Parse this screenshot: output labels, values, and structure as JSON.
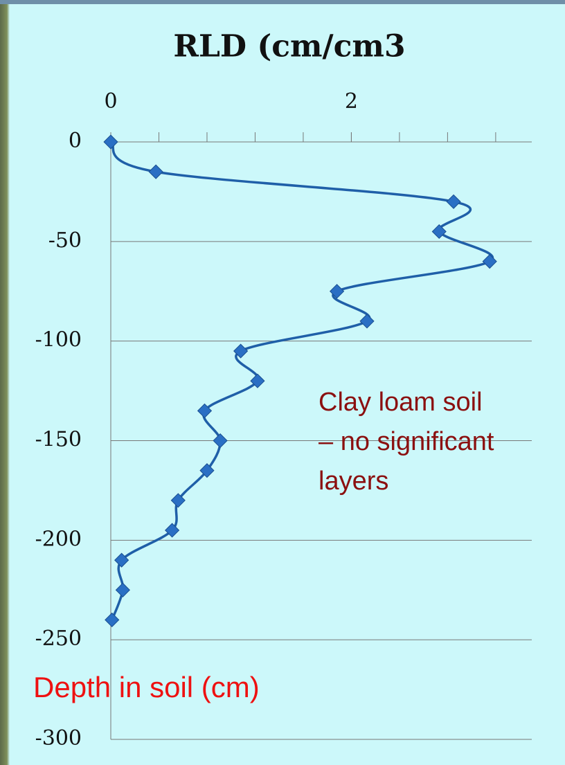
{
  "chart_data": {
    "type": "line",
    "title": "RLD (cm/cm3",
    "x": [
      0,
      0.375,
      2.85,
      2.73,
      3.15,
      1.88,
      2.13,
      1.08,
      1.22,
      0.78,
      0.91,
      0.8,
      0.56,
      0.51,
      0.09,
      0.1,
      0.01
    ],
    "series": [
      {
        "color": "#1f5fa8",
        "values": [
          0,
          -15,
          -30,
          -45,
          -60,
          -75,
          -90,
          -105,
          -120,
          -135,
          -150,
          -165,
          -180,
          -195,
          -210,
          -225,
          -240
        ]
      }
    ],
    "xlim": [
      0,
      3.5
    ],
    "xticks": [
      0,
      2
    ],
    "xminorticks": [
      0.4,
      0.8,
      1.2,
      1.6,
      2.0,
      2.4,
      2.8,
      3.2
    ],
    "ylim": [
      -300,
      0
    ],
    "yticks": [
      0,
      -50,
      -100,
      -150,
      -200,
      -250,
      -300
    ],
    "grid": true,
    "annotations": [
      {
        "lines": [
          "Clay loam soil",
          "– no significant",
          "layers"
        ],
        "color": "#8b1010"
      },
      {
        "lines": [
          "Depth in soil (cm)"
        ],
        "color": "#ee1111"
      }
    ]
  }
}
